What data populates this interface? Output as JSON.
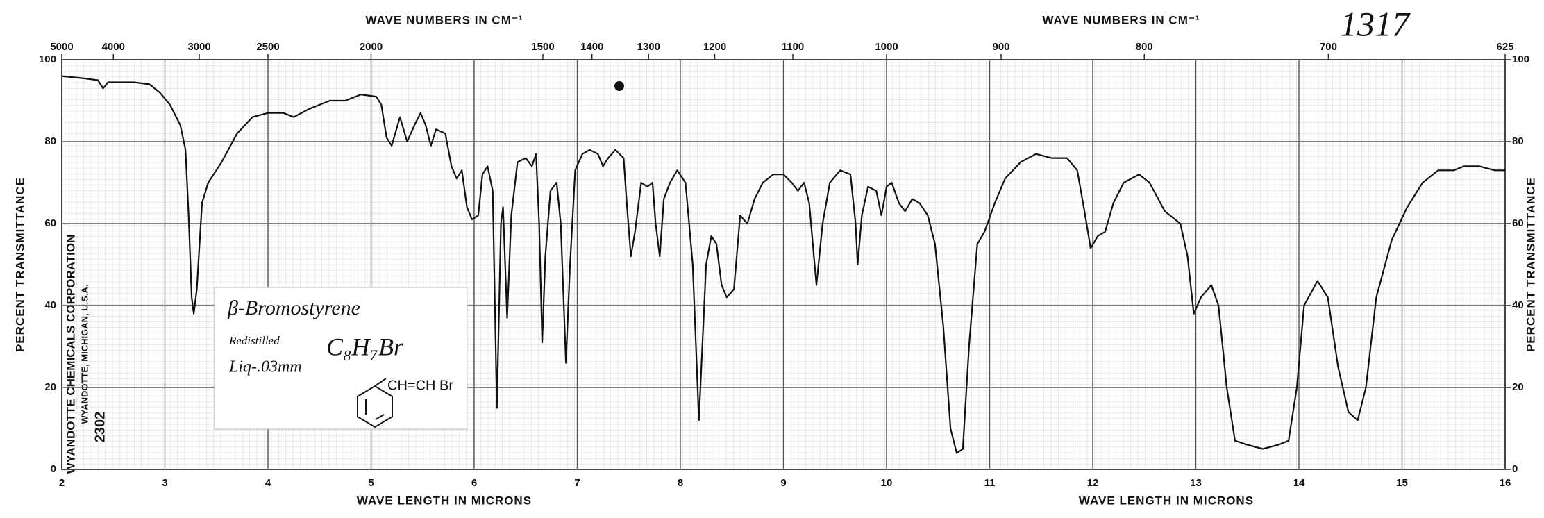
{
  "chart_data": {
    "type": "line",
    "top_axis_title": "WAVE NUMBERS IN CM⁻¹",
    "top_axis_title_right": "WAVE NUMBERS IN CM⁻¹",
    "x_axis_title": "WAVE LENGTH IN MICRONS",
    "x_axis_title_right": "WAVE LENGTH IN MICRONS",
    "y_axis_title": "PERCENT TRANSMITTANCE",
    "y2_axis_title": "PERCENT TRANSMITTANCE",
    "sheet_number": "1317",
    "publisher": "WYANDOTTE CHEMICALS CORPORATION",
    "publisher_address": "WYANDOTTE, MICHIGAN, U.S.A.",
    "spectrum_number": "2302",
    "sample": {
      "name": "β-Bromostyrene",
      "note": "Redistilled",
      "formula": "C₈H₇Br",
      "cell": "Liq-.03mm",
      "structure": "CH=CH Br"
    },
    "xlim": [
      2,
      16
    ],
    "xticks": [
      2,
      3,
      4,
      5,
      6,
      7,
      8,
      9,
      10,
      11,
      12,
      13,
      14,
      15,
      16
    ],
    "x2ticks": [
      5000,
      4000,
      3000,
      2500,
      2000,
      1500,
      1400,
      1300,
      1200,
      1100,
      1000,
      900,
      800,
      700,
      625
    ],
    "ylim": [
      0,
      100
    ],
    "yticks": [
      0,
      20,
      40,
      60,
      80,
      100
    ],
    "y2lim": [
      0,
      100
    ],
    "y2ticks": [
      0,
      20,
      40,
      60,
      80,
      100
    ],
    "grid": true,
    "x": [
      2.0,
      2.2,
      2.35,
      2.4,
      2.45,
      2.7,
      2.85,
      2.95,
      3.05,
      3.15,
      3.2,
      3.23,
      3.26,
      3.28,
      3.31,
      3.36,
      3.42,
      3.55,
      3.7,
      3.85,
      4.0,
      4.15,
      4.25,
      4.4,
      4.5,
      4.6,
      4.75,
      4.9,
      5.05,
      5.1,
      5.15,
      5.2,
      5.28,
      5.35,
      5.42,
      5.48,
      5.53,
      5.58,
      5.63,
      5.72,
      5.78,
      5.83,
      5.88,
      5.93,
      5.98,
      6.04,
      6.08,
      6.13,
      6.18,
      6.22,
      6.26,
      6.28,
      6.32,
      6.36,
      6.42,
      6.5,
      6.56,
      6.6,
      6.63,
      6.66,
      6.69,
      6.74,
      6.8,
      6.84,
      6.89,
      6.93,
      6.98,
      7.05,
      7.12,
      7.2,
      7.25,
      7.3,
      7.37,
      7.45,
      7.48,
      7.52,
      7.56,
      7.62,
      7.68,
      7.73,
      7.76,
      7.8,
      7.84,
      7.9,
      7.97,
      8.05,
      8.12,
      8.18,
      8.25,
      8.3,
      8.35,
      8.4,
      8.45,
      8.52,
      8.58,
      8.65,
      8.72,
      8.8,
      8.9,
      9.0,
      9.08,
      9.14,
      9.2,
      9.25,
      9.32,
      9.38,
      9.45,
      9.55,
      9.65,
      9.7,
      9.72,
      9.76,
      9.82,
      9.9,
      9.95,
      10.0,
      10.05,
      10.12,
      10.18,
      10.25,
      10.32,
      10.4,
      10.47,
      10.55,
      10.62,
      10.68,
      10.74,
      10.8,
      10.88,
      10.95,
      11.05,
      11.15,
      11.3,
      11.45,
      11.6,
      11.75,
      11.85,
      11.92,
      11.98,
      12.05,
      12.12,
      12.2,
      12.3,
      12.45,
      12.55,
      12.7,
      12.85,
      12.92,
      12.98,
      13.05,
      13.15,
      13.22,
      13.3,
      13.38,
      13.5,
      13.65,
      13.8,
      13.9,
      13.98,
      14.05,
      14.18,
      14.28,
      14.38,
      14.48,
      14.57,
      14.65,
      14.75,
      14.9,
      15.05,
      15.2,
      15.35,
      15.5,
      15.6,
      15.75,
      15.9,
      16.0
    ],
    "series": [
      {
        "name": "β-Bromostyrene",
        "color": "#111111",
        "values": [
          96,
          95.5,
          95,
          93,
          94.5,
          94.5,
          94,
          92,
          89,
          84,
          78,
          62,
          42,
          38,
          44,
          65,
          70,
          75,
          82,
          86,
          87,
          87,
          86,
          88,
          89,
          90,
          90,
          91.5,
          91,
          89,
          81,
          79,
          86,
          80,
          84,
          87,
          84,
          79,
          83,
          82,
          74,
          71,
          73,
          64,
          61,
          62,
          72,
          74,
          68,
          15,
          60,
          64,
          37,
          62,
          75,
          76,
          74,
          77,
          60,
          31,
          52,
          68,
          70,
          60,
          26,
          50,
          73,
          77,
          78,
          77,
          74,
          76,
          78,
          76,
          65,
          52,
          58,
          70,
          69,
          70,
          60,
          52,
          66,
          70,
          73,
          70,
          50,
          12,
          50,
          57,
          55,
          45,
          42,
          44,
          62,
          60,
          66,
          70,
          72,
          72,
          70,
          68,
          70,
          65,
          45,
          60,
          70,
          73,
          72,
          60,
          50,
          62,
          69,
          68,
          62,
          69,
          70,
          65,
          63,
          66,
          65,
          62,
          55,
          35,
          10,
          4,
          5,
          30,
          55,
          58,
          65,
          71,
          75,
          77,
          76,
          76,
          73,
          63,
          54,
          57,
          58,
          65,
          70,
          72,
          70,
          63,
          60,
          52,
          38,
          42,
          45,
          40,
          20,
          7,
          6,
          5,
          6,
          7,
          20,
          40,
          46,
          42,
          25,
          14,
          12,
          20,
          42,
          56,
          64,
          70,
          73,
          73,
          74,
          74,
          73,
          73
        ]
      }
    ]
  }
}
